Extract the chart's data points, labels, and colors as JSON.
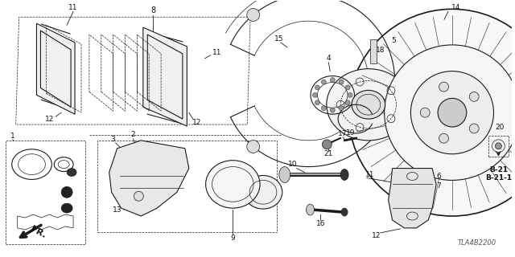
{
  "bg_color": "#ffffff",
  "line_color": "#1a1a1a",
  "text_color": "#111111",
  "diagram_code": "TLA4B2200",
  "figsize": [
    6.4,
    3.2
  ],
  "dpi": 100,
  "fr_label": "FR.",
  "ref_labels": [
    "B-21",
    "B-21-1"
  ]
}
